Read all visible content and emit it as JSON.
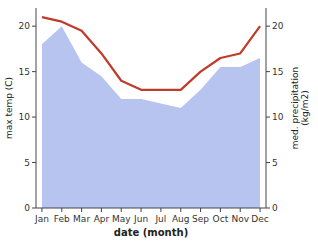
{
  "chart_data": {
    "type": "line",
    "categories": [
      "Jan",
      "Feb",
      "Mar",
      "Apr",
      "May",
      "Jun",
      "Jul",
      "Aug",
      "Sep",
      "Oct",
      "Nov",
      "Dec"
    ],
    "xlabel": "date (month)",
    "ylabel": "max temp (C)",
    "y2label": "med. precipitation\n(kg/m2)",
    "ylim": [
      0,
      22
    ],
    "yticks": [
      0,
      5,
      10,
      15,
      20
    ],
    "y2lim": [
      0,
      22
    ],
    "y2ticks": [
      0,
      5,
      10,
      15,
      20
    ],
    "series": [
      {
        "type": "area",
        "color": "#b8c4f0",
        "axis": "y2",
        "values": [
          18,
          20,
          16,
          14.5,
          12,
          12,
          11.5,
          11,
          13,
          15.5,
          15.5,
          16.5
        ]
      },
      {
        "type": "line",
        "color": "#c0392b",
        "values": [
          21,
          20.5,
          19.5,
          17,
          14,
          13,
          13,
          13,
          15,
          16.5,
          17,
          20
        ]
      }
    ]
  }
}
